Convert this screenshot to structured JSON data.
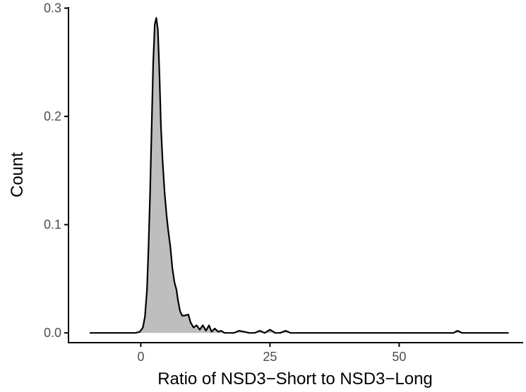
{
  "chart_data": {
    "type": "area",
    "title": "",
    "xlabel": "Ratio of NSD3−Short to NSD3−Long",
    "ylabel": "Count",
    "xlim": [
      -14,
      74
    ],
    "ylim": [
      -0.009,
      0.301
    ],
    "x_ticks": [
      0,
      25,
      50
    ],
    "x_tick_labels": [
      "0",
      "25",
      "50"
    ],
    "y_ticks": [
      0.0,
      0.1,
      0.2,
      0.3
    ],
    "y_tick_labels": [
      "0.0",
      "0.1",
      "0.2",
      "0.3"
    ],
    "grid": false,
    "legend": "none",
    "colors": {
      "fill": "#bebebe",
      "line": "#000000",
      "axis": "#000000",
      "tick_text": "#4d4d4d"
    },
    "series": [
      {
        "x": [
          -9.9,
          -1.0,
          -0.2,
          0.4,
          0.8,
          1.2,
          1.5,
          1.8,
          2.1,
          2.4,
          2.7,
          3.0,
          3.3,
          3.6,
          3.9,
          4.2,
          4.6,
          5.0,
          5.3,
          5.7,
          6.1,
          6.5,
          6.9,
          7.2,
          7.6,
          8.0,
          8.5,
          9.2,
          9.6,
          10.2,
          10.8,
          11.4,
          12.0,
          12.6,
          13.2,
          13.7,
          14.3,
          15.0,
          15.5,
          16.2,
          17.0,
          18.0,
          19.0,
          20.0,
          21.0,
          22.0,
          23.0,
          24.0,
          25.0,
          26.0,
          27.0,
          28.0,
          29.0,
          30.0,
          58.0,
          59.5,
          60.5,
          61.3,
          62.2,
          64.0,
          71.2
        ],
        "y": [
          0.0,
          0.0,
          0.001,
          0.005,
          0.015,
          0.04,
          0.08,
          0.13,
          0.19,
          0.25,
          0.285,
          0.291,
          0.28,
          0.24,
          0.19,
          0.16,
          0.13,
          0.108,
          0.095,
          0.08,
          0.06,
          0.047,
          0.04,
          0.03,
          0.02,
          0.016,
          0.016,
          0.017,
          0.01,
          0.005,
          0.007,
          0.003,
          0.007,
          0.002,
          0.007,
          0.001,
          0.004,
          0.001,
          0.002,
          0.0,
          0.0,
          0.0,
          0.002,
          0.001,
          0.0,
          0.0,
          0.002,
          0.0,
          0.003,
          0.0,
          0.0,
          0.002,
          0.0,
          0.0,
          0.0,
          0.0,
          0.0,
          0.002,
          0.0,
          0.0,
          0.0
        ]
      }
    ]
  }
}
